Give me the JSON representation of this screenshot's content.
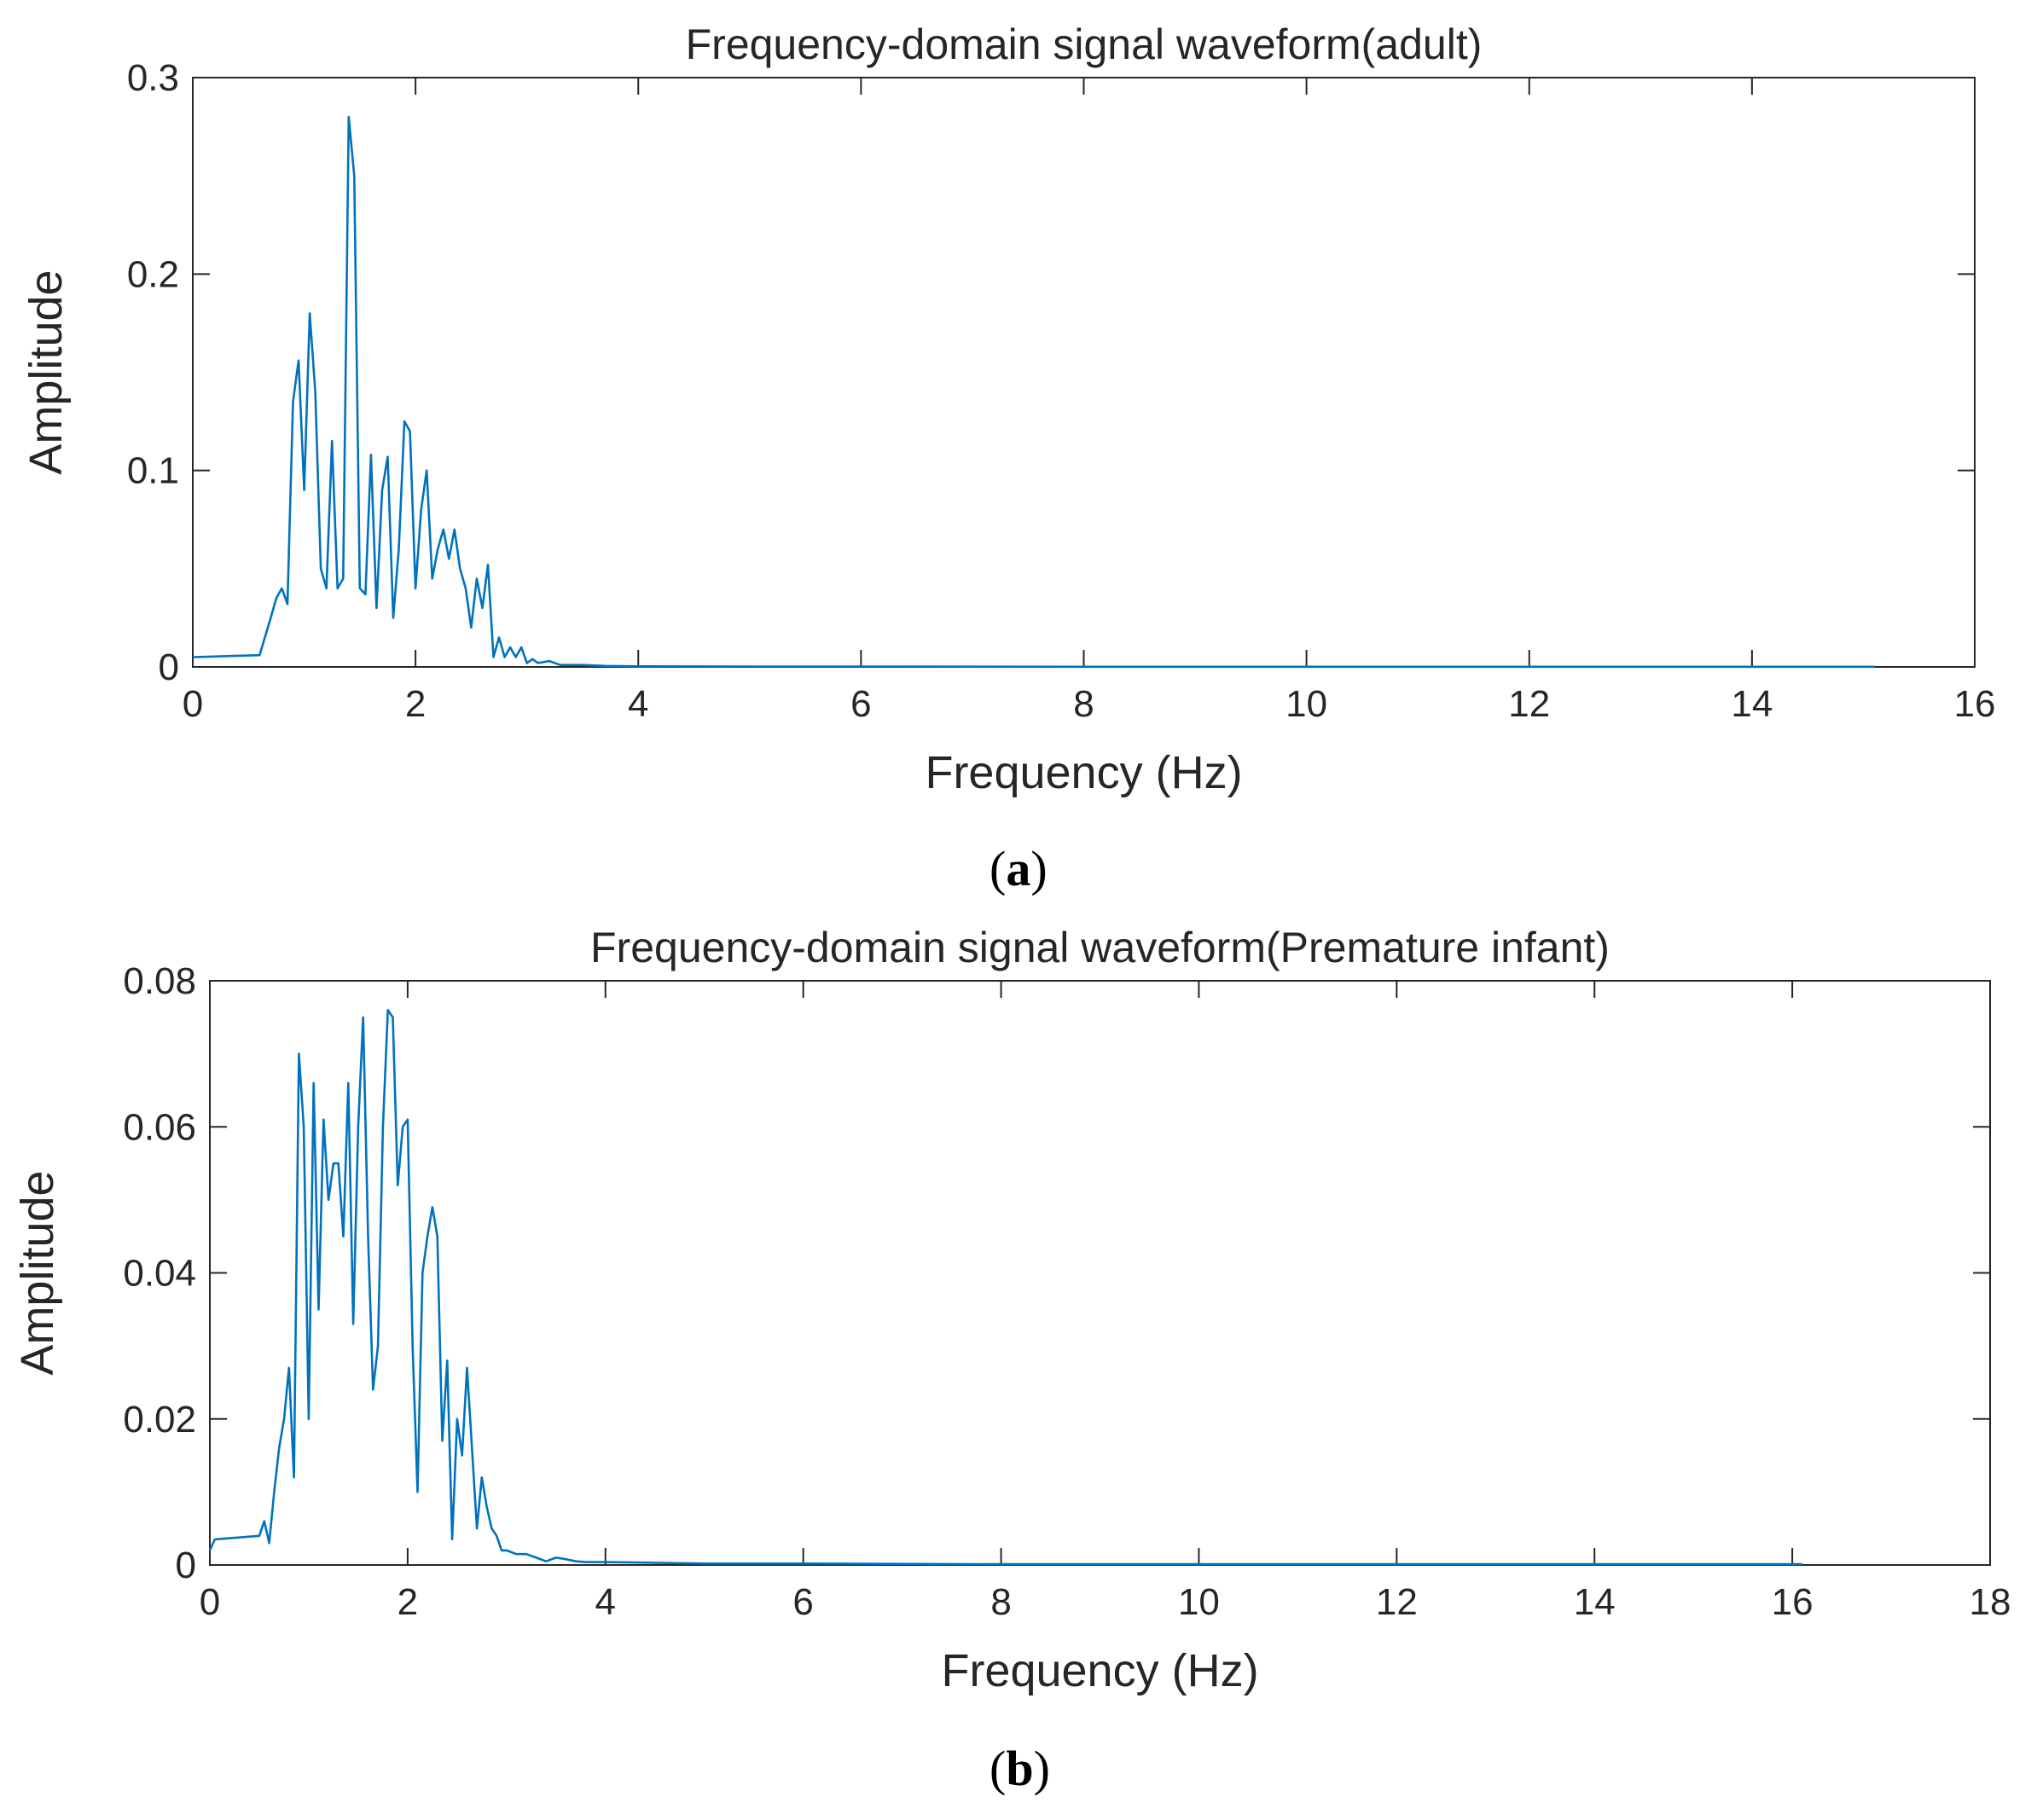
{
  "chart_data": [
    {
      "type": "line",
      "title": "Frequency-domain signal waveform(adult)",
      "xlabel": "Frequency (Hz)",
      "ylabel": "Amplitude",
      "xlim": [
        0,
        16
      ],
      "ylim": [
        0,
        0.3
      ],
      "xticks": [
        "0",
        "2",
        "4",
        "6",
        "8",
        "10",
        "12",
        "14",
        "16"
      ],
      "yticks": [
        "0",
        "0.1",
        "0.2",
        "0.3"
      ],
      "grid": false,
      "panel_label": "a",
      "line_color": "#0072BD",
      "series": [
        {
          "x": [
            0,
            0.6,
            0.7,
            0.75,
            0.8,
            0.85,
            0.9,
            0.95,
            1.0,
            1.05,
            1.1,
            1.15,
            1.2,
            1.25,
            1.3,
            1.35,
            1.4,
            1.45,
            1.5,
            1.55,
            1.6,
            1.65,
            1.7,
            1.75,
            1.8,
            1.85,
            1.9,
            1.95,
            2.0,
            2.05,
            2.1,
            2.15,
            2.2,
            2.25,
            2.3,
            2.35,
            2.4,
            2.45,
            2.5,
            2.55,
            2.6,
            2.65,
            2.7,
            2.75,
            2.8,
            2.85,
            2.9,
            2.95,
            3.0,
            3.05,
            3.1,
            3.2,
            3.3,
            3.5,
            3.7,
            4.0,
            5,
            6,
            8,
            10,
            12,
            14,
            15.1
          ],
          "y": [
            0.005,
            0.006,
            0.025,
            0.035,
            0.04,
            0.032,
            0.135,
            0.156,
            0.09,
            0.18,
            0.14,
            0.05,
            0.04,
            0.115,
            0.04,
            0.045,
            0.28,
            0.25,
            0.04,
            0.037,
            0.108,
            0.03,
            0.09,
            0.107,
            0.025,
            0.06,
            0.125,
            0.12,
            0.04,
            0.08,
            0.1,
            0.045,
            0.06,
            0.07,
            0.055,
            0.07,
            0.05,
            0.04,
            0.02,
            0.045,
            0.03,
            0.052,
            0.005,
            0.015,
            0.005,
            0.01,
            0.005,
            0.01,
            0.002,
            0.004,
            0.002,
            0.003,
            0.001,
            0.001,
            0.0005,
            0.0003,
            0.0002,
            0.0002,
            0.0001,
            0.0001,
            0.0001,
            0.0001,
            0.0001
          ]
        }
      ]
    },
    {
      "type": "line",
      "title": "Frequency-domain signal waveform(Premature infant)",
      "xlabel": "Frequency (Hz)",
      "ylabel": "Amplitude",
      "xlim": [
        0,
        18
      ],
      "ylim": [
        0,
        0.08
      ],
      "xticks": [
        "0",
        "2",
        "4",
        "6",
        "8",
        "10",
        "12",
        "14",
        "16",
        "18"
      ],
      "yticks": [
        "0",
        "0.02",
        "0.04",
        "0.06",
        "0.08"
      ],
      "grid": false,
      "panel_label": "b",
      "line_color": "#0072BD",
      "series": [
        {
          "x": [
            0,
            0.05,
            0.5,
            0.55,
            0.6,
            0.65,
            0.7,
            0.75,
            0.8,
            0.85,
            0.9,
            0.95,
            1.0,
            1.05,
            1.1,
            1.15,
            1.2,
            1.25,
            1.3,
            1.35,
            1.4,
            1.45,
            1.5,
            1.55,
            1.6,
            1.65,
            1.7,
            1.75,
            1.8,
            1.85,
            1.9,
            1.95,
            2.0,
            2.05,
            2.1,
            2.15,
            2.2,
            2.25,
            2.3,
            2.35,
            2.4,
            2.45,
            2.5,
            2.55,
            2.6,
            2.65,
            2.7,
            2.75,
            2.8,
            2.85,
            2.9,
            2.95,
            3.0,
            3.1,
            3.2,
            3.3,
            3.4,
            3.5,
            3.6,
            3.7,
            3.8,
            4.0,
            4.5,
            5,
            6,
            8,
            10,
            12,
            14,
            16.1
          ],
          "y": [
            0.002,
            0.0035,
            0.004,
            0.006,
            0.003,
            0.01,
            0.016,
            0.02,
            0.027,
            0.012,
            0.07,
            0.06,
            0.02,
            0.066,
            0.035,
            0.061,
            0.05,
            0.055,
            0.055,
            0.045,
            0.066,
            0.033,
            0.06,
            0.075,
            0.045,
            0.024,
            0.03,
            0.06,
            0.076,
            0.075,
            0.052,
            0.06,
            0.061,
            0.03,
            0.01,
            0.04,
            0.045,
            0.049,
            0.045,
            0.017,
            0.028,
            0.0035,
            0.02,
            0.015,
            0.027,
            0.016,
            0.005,
            0.012,
            0.008,
            0.005,
            0.004,
            0.002,
            0.002,
            0.0015,
            0.0015,
            0.001,
            0.0005,
            0.001,
            0.0008,
            0.0005,
            0.0004,
            0.0004,
            0.0003,
            0.0002,
            0.0002,
            0.0001,
            0.0001,
            0.0001,
            0.0001,
            0.0001
          ]
        }
      ]
    }
  ]
}
